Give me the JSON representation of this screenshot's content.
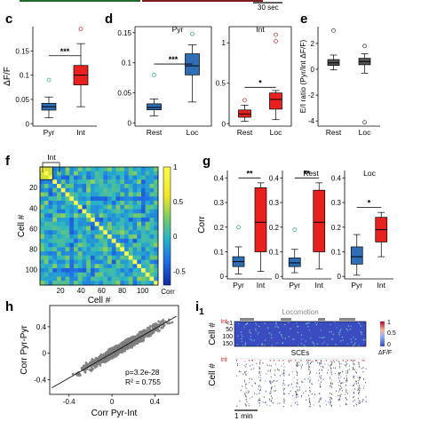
{
  "top_bar": {
    "scale_label": "30 sec"
  },
  "panels": {
    "c": {
      "label": "c"
    },
    "d": {
      "label": "d"
    },
    "e": {
      "label": "e"
    },
    "f": {
      "label": "f"
    },
    "g": {
      "label": "g"
    },
    "h": {
      "label": "h"
    },
    "i": {
      "label": "i",
      "sub": "1"
    }
  },
  "colors": {
    "pyr": "#2f6db5",
    "int": "#e8211e",
    "outlier_pyr": "#3fa89a",
    "outlier_int": "#d83a3a",
    "e_box": "#555555"
  },
  "chart_data": [
    {
      "id": "c",
      "type": "box",
      "ylabel": "ΔF/F",
      "yticks": [
        0,
        0.05,
        0.1,
        0.15
      ],
      "ylim": [
        -0.005,
        0.2
      ],
      "categories": [
        "Pyr",
        "Int"
      ],
      "boxes": [
        {
          "name": "Pyr",
          "whisker_low": 0.012,
          "q1": 0.028,
          "median": 0.035,
          "q3": 0.042,
          "whisker_high": 0.055,
          "outliers": [
            0.09
          ]
        },
        {
          "name": "Int",
          "whisker_low": 0.035,
          "q1": 0.08,
          "median": 0.1,
          "q3": 0.12,
          "whisker_high": 0.165,
          "outliers": [
            0.195
          ]
        }
      ],
      "significance": [
        {
          "from": 0,
          "to": 1,
          "label": "***",
          "y": 0.14
        }
      ]
    },
    {
      "id": "d1",
      "type": "box",
      "title": "Pyr",
      "yticks": [
        0,
        0.05,
        0.1,
        0.15
      ],
      "ylim": [
        -0.005,
        0.16
      ],
      "categories": [
        "Rest",
        "Loc"
      ],
      "boxes": [
        {
          "name": "Rest",
          "whisker_low": 0.012,
          "q1": 0.022,
          "median": 0.026,
          "q3": 0.032,
          "whisker_high": 0.04,
          "outliers": [
            0.08
          ]
        },
        {
          "name": "Loc",
          "whisker_low": 0.035,
          "q1": 0.08,
          "median": 0.095,
          "q3": 0.115,
          "whisker_high": 0.13,
          "outliers": [
            0.148
          ]
        }
      ],
      "significance": [
        {
          "from": 0,
          "to": 1,
          "label": "***",
          "y": 0.098
        }
      ]
    },
    {
      "id": "d2",
      "type": "box",
      "title": "Int",
      "yticks": [
        0,
        0.5,
        1
      ],
      "ylim": [
        -0.03,
        1.2
      ],
      "categories": [
        "Rest",
        "Loc"
      ],
      "boxes": [
        {
          "name": "Rest",
          "whisker_low": 0.03,
          "q1": 0.08,
          "median": 0.12,
          "q3": 0.17,
          "whisker_high": 0.23,
          "outliers": [
            0.29
          ]
        },
        {
          "name": "Loc",
          "whisker_low": 0.05,
          "q1": 0.18,
          "median": 0.3,
          "q3": 0.38,
          "whisker_high": 0.41,
          "outliers": [
            1.02,
            1.1
          ]
        }
      ],
      "significance": [
        {
          "from": 0,
          "to": 1,
          "label": "*",
          "y": 0.45
        }
      ]
    },
    {
      "id": "e",
      "type": "box",
      "ylabel": "E/I ratio (Pyr/Int ΔF/F)",
      "yticks": [
        -4,
        -2,
        0,
        2
      ],
      "ylim": [
        -4.4,
        3.3
      ],
      "categories": [
        "Rest",
        "Loc"
      ],
      "boxes": [
        {
          "name": "Rest",
          "whisker_low": -0.05,
          "q1": 0.3,
          "median": 0.5,
          "q3": 0.75,
          "whisker_high": 1.1,
          "outliers": [
            3.0
          ]
        },
        {
          "name": "Loc",
          "whisker_low": -0.3,
          "q1": 0.35,
          "median": 0.6,
          "q3": 0.85,
          "whisker_high": 1.2,
          "outliers": [
            1.8,
            -4.1
          ]
        }
      ]
    },
    {
      "id": "f",
      "type": "heatmap",
      "xlabel": "Cell #",
      "ylabel": "Cell #",
      "xticks": [
        20,
        40,
        60,
        80,
        100
      ],
      "yticks": [
        20,
        40,
        60,
        80,
        100
      ],
      "n": 115,
      "annotation": "Int",
      "colorbar": {
        "ticks": [
          1,
          0.5,
          0,
          -0.5
        ],
        "label": "Corr",
        "range": [
          -0.7,
          1
        ]
      }
    },
    {
      "id": "g1",
      "type": "box",
      "ylabel": "Corr",
      "yticks": [
        0,
        0.1,
        0.2,
        0.3,
        0.4
      ],
      "ylim": [
        -0.01,
        0.43
      ],
      "categories": [
        "Pyr",
        "Int"
      ],
      "boxes": [
        {
          "name": "Pyr",
          "whisker_low": 0.01,
          "q1": 0.04,
          "median": 0.06,
          "q3": 0.08,
          "whisker_high": 0.12,
          "outliers": [
            0.2
          ]
        },
        {
          "name": "Int",
          "whisker_low": 0.02,
          "q1": 0.1,
          "median": 0.22,
          "q3": 0.36,
          "whisker_high": 0.38,
          "outliers": []
        }
      ],
      "significance": [
        {
          "from": 0,
          "to": 1,
          "label": "**",
          "y": 0.4
        }
      ]
    },
    {
      "id": "g2",
      "type": "box",
      "title": "Rest",
      "yticks": [
        0,
        0.1,
        0.2,
        0.3,
        0.4
      ],
      "ylim": [
        -0.01,
        0.43
      ],
      "categories": [
        "Pyr",
        "Int"
      ],
      "boxes": [
        {
          "name": "Pyr",
          "whisker_low": 0.015,
          "q1": 0.04,
          "median": 0.055,
          "q3": 0.075,
          "whisker_high": 0.11,
          "outliers": [
            0.19
          ]
        },
        {
          "name": "Int",
          "whisker_low": 0.03,
          "q1": 0.1,
          "median": 0.22,
          "q3": 0.35,
          "whisker_high": 0.38,
          "outliers": []
        }
      ],
      "significance": [
        {
          "from": 0,
          "to": 1,
          "label": "**",
          "y": 0.4
        }
      ]
    },
    {
      "id": "g3",
      "type": "box",
      "title": "Loc",
      "yticks": [
        0,
        0.1,
        0.2,
        0.3,
        0.4
      ],
      "ylim": [
        -0.01,
        0.43
      ],
      "categories": [
        "Pyr",
        "Int"
      ],
      "boxes": [
        {
          "name": "Pyr",
          "whisker_low": 0.005,
          "q1": 0.05,
          "median": 0.08,
          "q3": 0.12,
          "whisker_high": 0.17,
          "outliers": []
        },
        {
          "name": "Int",
          "whisker_low": 0.08,
          "q1": 0.14,
          "median": 0.19,
          "q3": 0.24,
          "whisker_high": 0.26,
          "outliers": []
        }
      ],
      "significance": [
        {
          "from": 0,
          "to": 1,
          "label": "*",
          "y": 0.28
        }
      ]
    },
    {
      "id": "h",
      "type": "scatter",
      "xlabel": "Corr Pyr-Int",
      "ylabel": "Corr Pyr-Pyr",
      "xticks": [
        -0.4,
        0,
        0.4
      ],
      "yticks": [
        -0.4,
        0,
        0.4
      ],
      "xlim": [
        -0.58,
        0.62
      ],
      "ylim": [
        -0.62,
        0.72
      ],
      "fit": {
        "slope": 0.93,
        "intercept": 0.0
      },
      "stats": [
        "p=3.2e-28",
        "R² = 0.755"
      ]
    },
    {
      "id": "i1",
      "type": "heatmap",
      "ylabel_top": "Cell #",
      "ylabel_bottom": "Cell #",
      "yticks": [
        "<1",
        "50",
        "100",
        "150"
      ],
      "int_label_top": "Int",
      "int_label_bottom": "Int",
      "locomotion_label": "Locomotion",
      "sces_label": "SCEs",
      "colorbar": {
        "ticks": [
          "1",
          "0.5",
          "0"
        ],
        "label": "ΔF/F"
      },
      "scale_label": "1 min"
    }
  ]
}
